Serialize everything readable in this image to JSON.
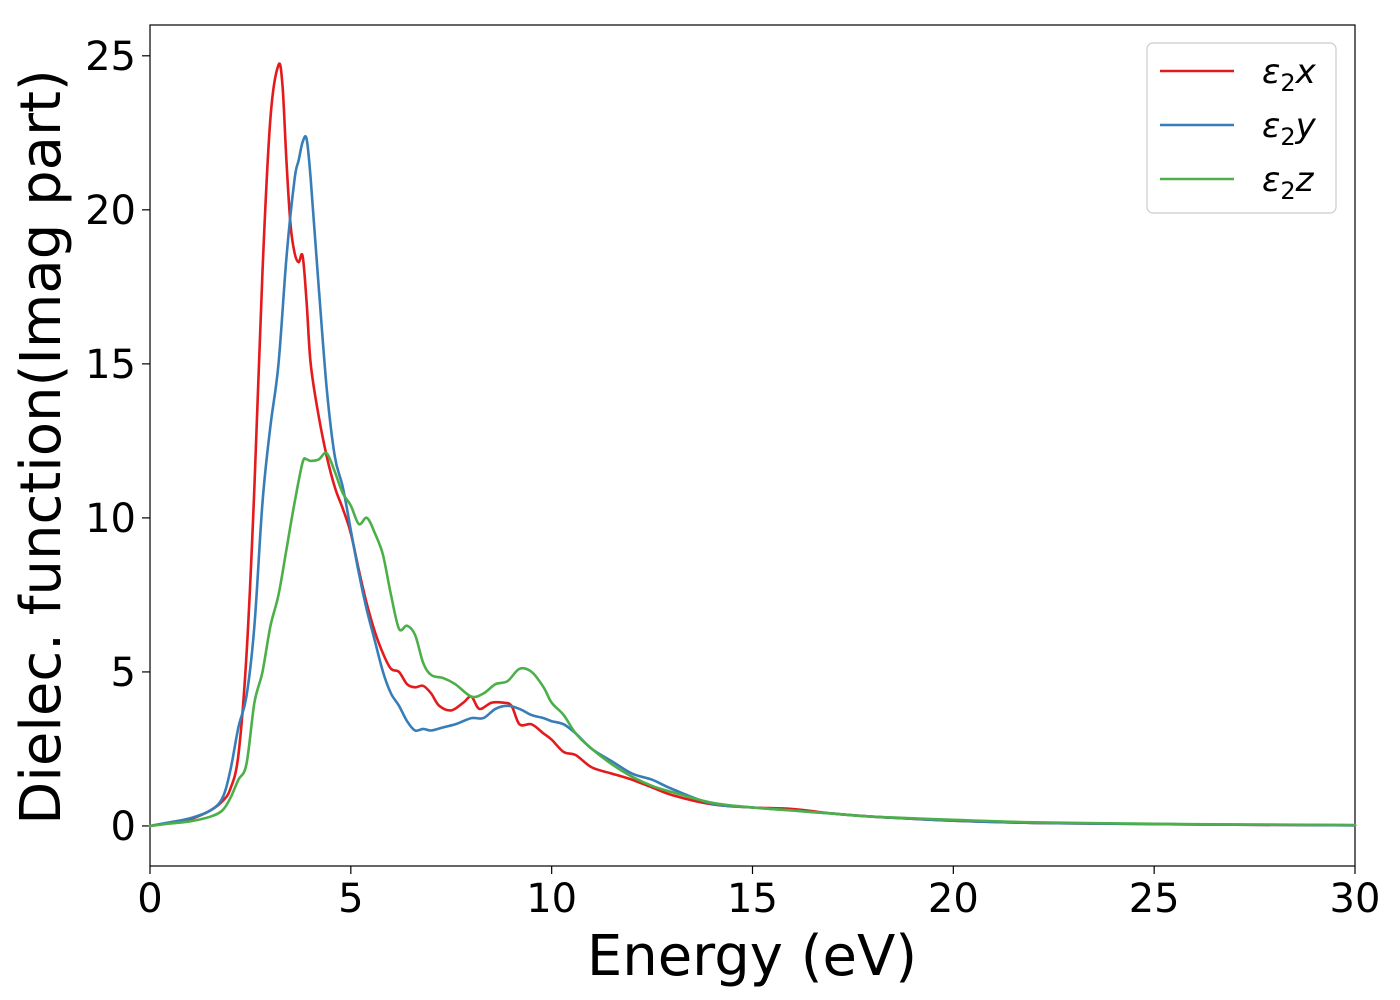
{
  "chart_data": {
    "type": "line",
    "title": "",
    "xlabel": "Energy (eV)",
    "ylabel": "Dielec. function(Imag part)",
    "xlim": [
      0,
      30
    ],
    "ylim": [
      -1.3,
      26
    ],
    "xticks": [
      0,
      5,
      10,
      15,
      20,
      25,
      30
    ],
    "yticks": [
      0,
      5,
      10,
      15,
      20,
      25
    ],
    "grid": false,
    "legend_position": "top-right",
    "series": [
      {
        "name": "ε₂x",
        "legend": {
          "main": "ε",
          "sub": "2",
          "tail": "x"
        },
        "color": "#e41a1c",
        "x": [
          0,
          0.5,
          1.0,
          1.5,
          1.8,
          2.0,
          2.2,
          2.4,
          2.6,
          2.8,
          3.0,
          3.2,
          3.3,
          3.4,
          3.5,
          3.6,
          3.7,
          3.8,
          3.9,
          4.0,
          4.2,
          4.4,
          4.6,
          4.8,
          5.0,
          5.2,
          5.4,
          5.6,
          5.8,
          6.0,
          6.2,
          6.4,
          6.6,
          6.8,
          7.0,
          7.2,
          7.5,
          7.8,
          8.0,
          8.2,
          8.5,
          8.8,
          9.0,
          9.2,
          9.5,
          9.8,
          10.0,
          10.3,
          10.6,
          11.0,
          11.5,
          12.0,
          12.5,
          13.0,
          14.0,
          15.0,
          16.0,
          17.0,
          18.0,
          20.0,
          22.0,
          25.0,
          27.0,
          30.0
        ],
        "values": [
          0.0,
          0.1,
          0.22,
          0.5,
          0.8,
          1.2,
          2.3,
          5.5,
          11.0,
          18.0,
          23.0,
          24.7,
          24.0,
          21.5,
          19.5,
          18.6,
          18.3,
          18.5,
          17.0,
          15.0,
          13.3,
          12.0,
          11.0,
          10.3,
          9.5,
          8.3,
          7.2,
          6.3,
          5.6,
          5.1,
          5.0,
          4.6,
          4.5,
          4.55,
          4.3,
          3.9,
          3.75,
          4.0,
          4.2,
          3.8,
          4.0,
          4.0,
          3.9,
          3.3,
          3.3,
          3.0,
          2.8,
          2.4,
          2.3,
          1.9,
          1.7,
          1.5,
          1.25,
          1.0,
          0.7,
          0.6,
          0.55,
          0.4,
          0.3,
          0.17,
          0.1,
          0.06,
          0.04,
          0.02
        ]
      },
      {
        "name": "ε₂y",
        "legend": {
          "main": "ε",
          "sub": "2",
          "tail": "y"
        },
        "color": "#377eb8",
        "x": [
          0,
          0.5,
          1.0,
          1.5,
          1.8,
          2.0,
          2.2,
          2.4,
          2.6,
          2.8,
          3.0,
          3.2,
          3.4,
          3.6,
          3.7,
          3.8,
          3.9,
          4.0,
          4.2,
          4.4,
          4.6,
          4.8,
          5.0,
          5.2,
          5.4,
          5.6,
          5.8,
          6.0,
          6.2,
          6.4,
          6.6,
          6.8,
          7.0,
          7.3,
          7.6,
          8.0,
          8.3,
          8.6,
          8.9,
          9.2,
          9.5,
          9.8,
          10.0,
          10.3,
          10.6,
          11.0,
          11.5,
          12.0,
          12.5,
          13.0,
          14.0,
          15.0,
          16.0,
          17.0,
          18.0,
          20.0,
          22.0,
          25.0,
          27.0,
          30.0
        ],
        "values": [
          0.0,
          0.12,
          0.25,
          0.5,
          0.9,
          1.8,
          3.2,
          4.2,
          6.5,
          10.5,
          13.0,
          15.0,
          18.5,
          21.0,
          21.6,
          22.2,
          22.3,
          21.0,
          17.5,
          14.2,
          12.0,
          11.0,
          9.6,
          8.2,
          7.0,
          6.0,
          5.0,
          4.3,
          3.9,
          3.4,
          3.1,
          3.15,
          3.1,
          3.2,
          3.3,
          3.5,
          3.5,
          3.8,
          3.9,
          3.8,
          3.6,
          3.5,
          3.4,
          3.3,
          3.0,
          2.5,
          2.1,
          1.7,
          1.5,
          1.2,
          0.72,
          0.6,
          0.5,
          0.4,
          0.3,
          0.17,
          0.1,
          0.06,
          0.04,
          0.02
        ]
      },
      {
        "name": "ε₂z",
        "legend": {
          "main": "ε",
          "sub": "2",
          "tail": "z"
        },
        "color": "#4daf4a",
        "x": [
          0,
          0.5,
          1.0,
          1.5,
          1.8,
          2.0,
          2.2,
          2.4,
          2.6,
          2.8,
          3.0,
          3.2,
          3.4,
          3.6,
          3.8,
          3.9,
          4.0,
          4.2,
          4.4,
          4.6,
          4.8,
          5.0,
          5.2,
          5.4,
          5.6,
          5.8,
          6.0,
          6.2,
          6.4,
          6.6,
          6.8,
          7.0,
          7.3,
          7.6,
          8.0,
          8.3,
          8.6,
          8.9,
          9.2,
          9.5,
          9.8,
          10.0,
          10.3,
          10.6,
          11.0,
          11.5,
          12.0,
          12.5,
          13.0,
          14.0,
          15.0,
          16.0,
          17.0,
          18.0,
          20.0,
          22.0,
          25.0,
          27.0,
          30.0
        ],
        "values": [
          0.0,
          0.08,
          0.15,
          0.3,
          0.5,
          0.9,
          1.5,
          2.0,
          4.0,
          5.0,
          6.5,
          7.5,
          9.0,
          10.5,
          11.8,
          11.9,
          11.85,
          11.9,
          12.1,
          11.5,
          10.8,
          10.4,
          9.8,
          10.0,
          9.5,
          8.8,
          7.5,
          6.4,
          6.5,
          6.2,
          5.3,
          4.9,
          4.8,
          4.6,
          4.2,
          4.3,
          4.6,
          4.7,
          5.1,
          5.0,
          4.5,
          4.0,
          3.6,
          3.0,
          2.5,
          2.0,
          1.6,
          1.3,
          1.1,
          0.75,
          0.6,
          0.5,
          0.4,
          0.3,
          0.2,
          0.12,
          0.07,
          0.05,
          0.03
        ]
      }
    ]
  }
}
